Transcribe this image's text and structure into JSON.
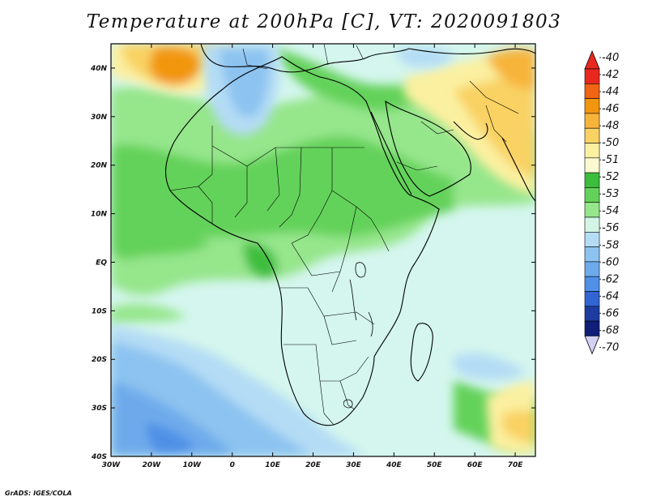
{
  "title": "Temperature at 200hPa [C], VT: 2020091803",
  "credit": "GrADS: IGES/COLA",
  "map": {
    "lon_range": [
      -30,
      75
    ],
    "lat_range": [
      -40,
      45
    ],
    "lat_ticks": [
      "40N",
      "30N",
      "20N",
      "10N",
      "EQ",
      "10S",
      "20S",
      "30S",
      "40S"
    ],
    "lon_ticks": [
      "30W",
      "20W",
      "10W",
      "0",
      "10E",
      "20E",
      "30E",
      "40E",
      "50E",
      "60E",
      "70E"
    ]
  },
  "colorbar": {
    "levels": [
      "-40",
      "-42",
      "-44",
      "-46",
      "-48",
      "-50",
      "-51",
      "-52",
      "-53",
      "-54",
      "-56",
      "-58",
      "-60",
      "-62",
      "-64",
      "-66",
      "-68",
      "-70"
    ],
    "colors": [
      "#e8281e",
      "#f06414",
      "#f2960f",
      "#f7b43a",
      "#f9d264",
      "#fbf0a0",
      "#fbfad0",
      "#3cbe3c",
      "#64d25a",
      "#96e68c",
      "#d2f5e6",
      "#b4dcf5",
      "#8cc3f0",
      "#6eaaeb",
      "#5090e6",
      "#3264d2",
      "#1e3ca0",
      "#0f1e78"
    ],
    "top_arrow_color": "#e8281e",
    "bottom_arrow_color": "#d2d2f5"
  },
  "colors": {
    "ocean": "#d4f6ee",
    "land_coast": "#000000"
  }
}
